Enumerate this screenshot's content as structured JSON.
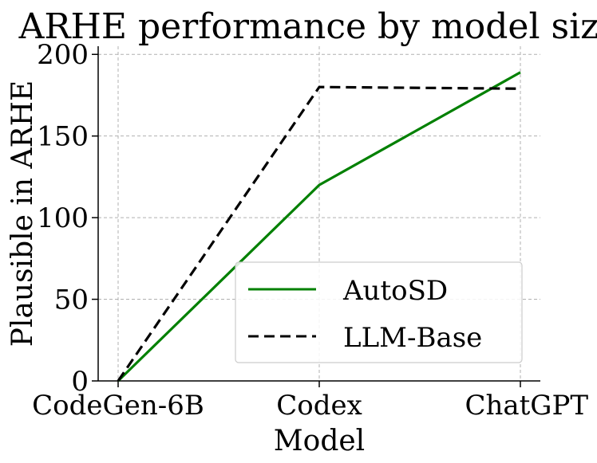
{
  "chart_data": {
    "type": "line",
    "title": "ARHE performance by model size",
    "xlabel": "Model",
    "ylabel": "Plausible in ARHE",
    "categories": [
      "CodeGen-6B",
      "Codex",
      "ChatGPT"
    ],
    "series": [
      {
        "name": "AutoSD",
        "values": [
          0,
          120,
          189
        ],
        "color": "#008000",
        "style": "solid"
      },
      {
        "name": "LLM-Base",
        "values": [
          0,
          180,
          179
        ],
        "color": "#000000",
        "style": "dashed"
      }
    ],
    "ylim": [
      0,
      205
    ],
    "yticks": [
      0,
      50,
      100,
      150,
      200
    ],
    "grid": true,
    "legend_position": "lower-right"
  }
}
